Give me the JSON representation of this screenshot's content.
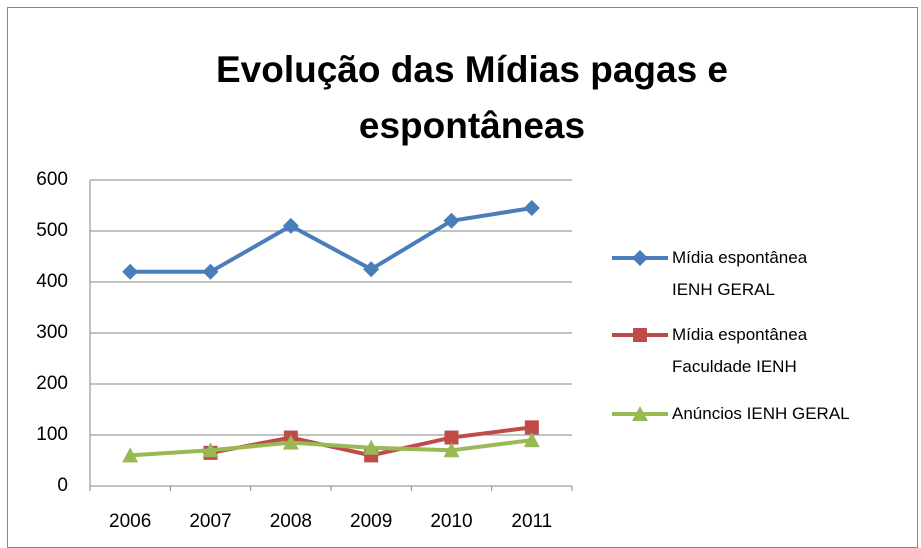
{
  "chart_data": {
    "type": "line",
    "title": "Evolução das Mídias pagas e espontâneas",
    "categories": [
      "2006",
      "2007",
      "2008",
      "2009",
      "2010",
      "2011"
    ],
    "series": [
      {
        "name": "Mídia espontânea IENH GERAL",
        "color": "#4a7ebb",
        "marker": "diamond",
        "values": [
          420,
          420,
          510,
          425,
          520,
          545
        ]
      },
      {
        "name": "Mídia espontânea Faculdade IENH",
        "color": "#be4b48",
        "marker": "square",
        "values": [
          null,
          65,
          95,
          60,
          95,
          115
        ]
      },
      {
        "name": "Anúncios IENH GERAL",
        "color": "#98b954",
        "marker": "triangle",
        "values": [
          60,
          70,
          85,
          75,
          70,
          90
        ]
      }
    ],
    "ylim": [
      0,
      600
    ],
    "yticks": [
      0,
      100,
      200,
      300,
      400,
      500,
      600
    ],
    "grid": true,
    "legend": "right"
  }
}
